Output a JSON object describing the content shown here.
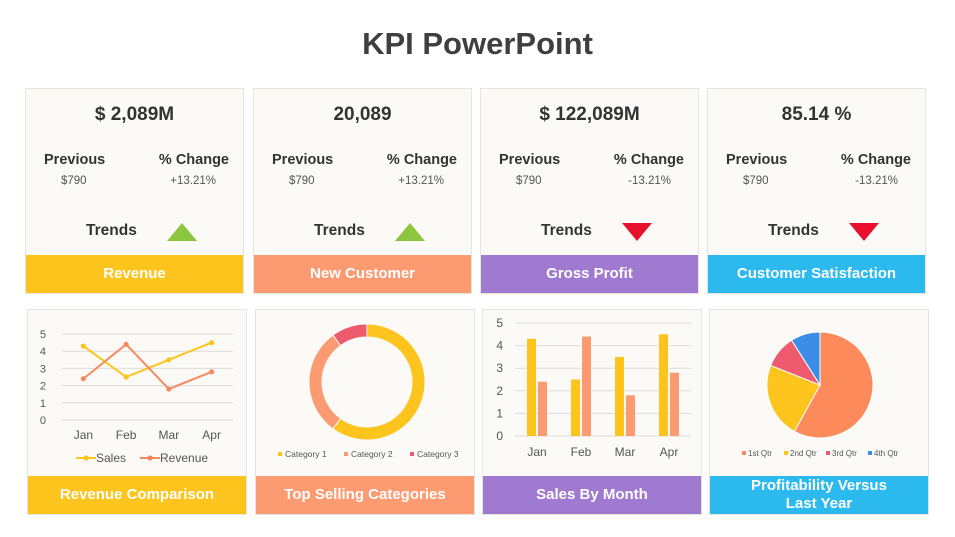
{
  "title": "KPI PowerPoint",
  "colors": {
    "yellow": "#fcc41c",
    "orange": "#fc9a72",
    "purple": "#a07ad0",
    "blue": "#2cb9ee",
    "up": "#8cc63f",
    "down": "#e8112d"
  },
  "kpis": [
    {
      "value": "$ 2,089M",
      "previous_label": "Previous",
      "previous_value": "$790",
      "change_label": "% Change",
      "change_value": "+13.21%",
      "trend_label": "Trends",
      "trend": "up",
      "trend_icon": "triangle-up-icon",
      "footer": "Revenue"
    },
    {
      "value": "20,089",
      "previous_label": "Previous",
      "previous_value": "$790",
      "change_label": "% Change",
      "change_value": "+13.21%",
      "trend_label": "Trends",
      "trend": "up",
      "trend_icon": "triangle-up-icon",
      "footer": "New Customer"
    },
    {
      "value": "$ 122,089M",
      "previous_label": "Previous",
      "previous_value": "$790",
      "change_label": "% Change",
      "change_value": "-13.21%",
      "trend_label": "Trends",
      "trend": "down",
      "trend_icon": "triangle-down-icon",
      "footer": "Gross Profit"
    },
    {
      "value": "85.14 %",
      "previous_label": "Previous",
      "previous_value": "$790",
      "change_label": "% Change",
      "change_value": "-13.21%",
      "trend_label": "Trends",
      "trend": "down",
      "trend_icon": "triangle-down-icon",
      "footer": "Customer Satisfaction"
    }
  ],
  "charts": {
    "revenue_comparison": {
      "footer": "Revenue Comparison"
    },
    "top_selling": {
      "footer": "Top Selling Categories"
    },
    "sales_by_month": {
      "footer": "Sales By Month"
    },
    "profitability": {
      "footer": "Profitability Versus Last Year"
    }
  },
  "chart_data": [
    {
      "type": "line",
      "categories": [
        "Jan",
        "Feb",
        "Mar",
        "Apr"
      ],
      "series": [
        {
          "name": "Sales",
          "values": [
            4.3,
            2.5,
            3.5,
            4.5
          ],
          "color": "#fcc41c"
        },
        {
          "name": "Revenue",
          "values": [
            2.4,
            4.4,
            1.8,
            2.8
          ],
          "color": "#f58a60"
        }
      ],
      "ylim": [
        0,
        5
      ],
      "yticks": [
        "0",
        "1",
        "2",
        "3",
        "4",
        "5"
      ],
      "grid": true,
      "legend": "bottom"
    },
    {
      "type": "pie",
      "donut": true,
      "labels": [
        "Category 1",
        "Category 2",
        "Category 3"
      ],
      "values": [
        60,
        30,
        10
      ],
      "colors": [
        "#fcc41c",
        "#fc9a72",
        "#ee5b6e"
      ],
      "legend": "bottom"
    },
    {
      "type": "bar",
      "categories": [
        "Jan",
        "Feb",
        "Mar",
        "Apr"
      ],
      "series": [
        {
          "values": [
            4.3,
            2.5,
            3.5,
            4.5
          ],
          "color": "#fcc41c"
        },
        {
          "values": [
            2.4,
            4.4,
            1.8,
            2.8
          ],
          "color": "#fc9a72"
        }
      ],
      "ylim": [
        0,
        5
      ],
      "yticks": [
        "0",
        "1",
        "2",
        "3",
        "4",
        "5"
      ],
      "grid": true
    },
    {
      "type": "pie",
      "labels": [
        "1st Qtr",
        "2nd Qtr",
        "3rd Qtr",
        "4th Qtr"
      ],
      "values": [
        58,
        23,
        10,
        9
      ],
      "colors": [
        "#fc8a5a",
        "#fcc41c",
        "#ee5b6e",
        "#3a8ee8"
      ],
      "legend": "bottom"
    }
  ]
}
